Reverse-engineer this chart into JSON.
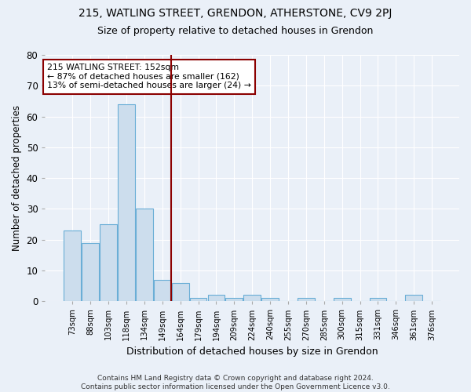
{
  "title1": "215, WATLING STREET, GRENDON, ATHERSTONE, CV9 2PJ",
  "title2": "Size of property relative to detached houses in Grendon",
  "xlabel": "Distribution of detached houses by size in Grendon",
  "ylabel": "Number of detached properties",
  "categories": [
    "73sqm",
    "88sqm",
    "103sqm",
    "118sqm",
    "134sqm",
    "149sqm",
    "164sqm",
    "179sqm",
    "194sqm",
    "209sqm",
    "224sqm",
    "240sqm",
    "255sqm",
    "270sqm",
    "285sqm",
    "300sqm",
    "315sqm",
    "331sqm",
    "346sqm",
    "361sqm",
    "376sqm"
  ],
  "values": [
    23,
    19,
    25,
    64,
    30,
    7,
    6,
    1,
    2,
    1,
    2,
    1,
    0,
    1,
    0,
    1,
    0,
    1,
    0,
    2,
    0
  ],
  "bar_color": "#ccdded",
  "bar_edge_color": "#6aaed6",
  "annotation_text": "215 WATLING STREET: 152sqm\n← 87% of detached houses are smaller (162)\n13% of semi-detached houses are larger (24) →",
  "annotation_box_color": "#ffffff",
  "annotation_box_edge_color": "#8b0000",
  "vline_color": "#8b0000",
  "ylim": [
    0,
    80
  ],
  "yticks": [
    0,
    10,
    20,
    30,
    40,
    50,
    60,
    70,
    80
  ],
  "footer": "Contains HM Land Registry data © Crown copyright and database right 2024.\nContains public sector information licensed under the Open Government Licence v3.0.",
  "bg_color": "#eaf0f8",
  "grid_color": "#ffffff"
}
